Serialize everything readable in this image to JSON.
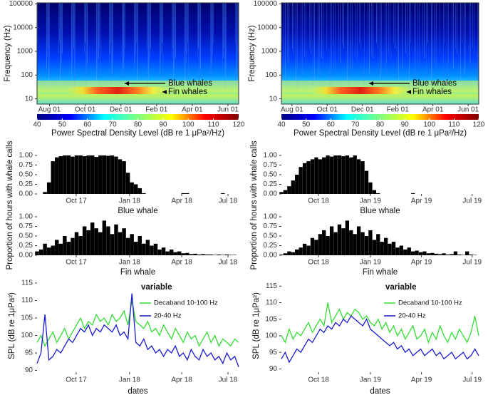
{
  "chart_data": [
    {
      "type": "spectrogram",
      "ylabel": "Frequency (Hz)",
      "log_y": true,
      "ylim": [
        6,
        110000
      ],
      "yticks": [
        10,
        100,
        1000,
        10000,
        100000
      ],
      "xlim": [
        0.3,
        11.6
      ],
      "xticks": [
        {
          "value": 1,
          "label": "Aug 01"
        },
        {
          "value": 3,
          "label": "Oct 01"
        },
        {
          "value": 5,
          "label": "Dec 01"
        },
        {
          "value": 7,
          "label": "Feb 01"
        },
        {
          "value": 9,
          "label": "Apr 01"
        },
        {
          "value": 11,
          "label": "Jun 01"
        }
      ],
      "annotations": [
        "Blue whales",
        "Fin whales"
      ],
      "colorbar": {
        "lim": [
          40,
          120
        ],
        "ticks": [
          40,
          50,
          60,
          70,
          80,
          90,
          100,
          110,
          120
        ],
        "label": "Power Spectral Density Level (dB re 1 μPa²/Hz)",
        "colors": [
          "#00007f",
          "#0000ff",
          "#00ffff",
          "#7fff7f",
          "#ffff00",
          "#ff0000",
          "#7f0000"
        ]
      }
    },
    {
      "type": "bar",
      "ylabel": "Proportion of hours with whale calls",
      "xlabel": "Blue whale",
      "color": "#000000",
      "xlim": [
        0,
        51
      ],
      "ylim": [
        0,
        1
      ],
      "xticks": [
        {
          "value": 9.9,
          "label": "Oct 17"
        },
        {
          "value": 23.4,
          "label": "Jan 18"
        },
        {
          "value": 36.6,
          "label": "Apr 18"
        },
        {
          "value": 48.3,
          "label": "Jul 18"
        }
      ],
      "yticks": [
        {
          "value": 0,
          "label": "0.00"
        },
        {
          "value": 0.25,
          "label": "0.25"
        },
        {
          "value": 0.5,
          "label": "0.50"
        },
        {
          "value": 0.75,
          "label": "0.75"
        },
        {
          "value": 1,
          "label": "1.00"
        }
      ],
      "values": [
        0,
        0,
        0.05,
        0.3,
        0.85,
        0.95,
        0.98,
        1,
        1,
        0.97,
        1,
        1,
        0.98,
        1,
        1,
        0.96,
        1,
        1,
        0.99,
        1,
        0.97,
        0.9,
        0.85,
        0.55,
        0.3,
        0.25,
        0.15,
        0.02,
        0,
        0,
        0,
        0,
        0,
        0,
        0,
        0,
        0,
        0.02,
        0.02,
        0,
        0,
        0,
        0,
        0,
        0,
        0,
        0,
        0.02,
        0,
        0,
        0,
        0
      ]
    },
    {
      "type": "bar",
      "xlabel": "Fin whale",
      "color": "#000000",
      "xlim": [
        0,
        51
      ],
      "ylim": [
        0,
        1
      ],
      "xticks": [
        {
          "value": 9.9,
          "label": "Oct 17"
        },
        {
          "value": 23.4,
          "label": "Jan 18"
        },
        {
          "value": 36.6,
          "label": "Apr 18"
        },
        {
          "value": 48.3,
          "label": "Jul 18"
        }
      ],
      "yticks": [
        {
          "value": 0,
          "label": "0.00"
        },
        {
          "value": 0.25,
          "label": "0.25"
        },
        {
          "value": 0.5,
          "label": "0.50"
        },
        {
          "value": 0.75,
          "label": "0.75"
        },
        {
          "value": 1,
          "label": "1.00"
        }
      ],
      "values": [
        0.1,
        0.15,
        0.3,
        0.2,
        0.25,
        0.4,
        0.3,
        0.5,
        0.35,
        0.45,
        0.6,
        0.5,
        0.75,
        0.65,
        0.85,
        0.7,
        0.6,
        0.9,
        0.75,
        0.55,
        0.8,
        0.6,
        0.7,
        0.45,
        0.55,
        0.35,
        0.5,
        0.3,
        0.4,
        0.25,
        0.3,
        0.15,
        0.2,
        0.1,
        0.15,
        0.08,
        0.1,
        0.05,
        0.06,
        0.03,
        0.04,
        0.02,
        0.03,
        0.02,
        0.02,
        0.01,
        0.02,
        0.01,
        0.02,
        0.01,
        0.01,
        0
      ]
    },
    {
      "type": "line",
      "ylabel": "SPL (dB re 1μPa²)",
      "xlabel": "dates",
      "legend_title": "variable",
      "xlim": [
        0,
        51
      ],
      "ylim": [
        89.5,
        116
      ],
      "xticks": [
        {
          "value": 9.9,
          "label": "Oct 17"
        },
        {
          "value": 23.4,
          "label": "Jan 18"
        },
        {
          "value": 36.6,
          "label": "Apr 18"
        },
        {
          "value": 48.3,
          "label": "Jul 18"
        }
      ],
      "yticks": [
        90,
        95,
        100,
        105,
        110,
        115
      ],
      "series": [
        {
          "name": "Decaband 10-100 Hz",
          "color": "#33dd33",
          "values": [
            98,
            100,
            97,
            99,
            101,
            98,
            100,
            102,
            99,
            101,
            103,
            105,
            102,
            104,
            103,
            106,
            104,
            105,
            103,
            106,
            104,
            105,
            107,
            103,
            110,
            104,
            103,
            102,
            104,
            101,
            102,
            100,
            103,
            101,
            99,
            102,
            100,
            98,
            101,
            99,
            100,
            97,
            99,
            101,
            98,
            100,
            97,
            99,
            98,
            97,
            99,
            98
          ]
        },
        {
          "name": "20-40 Hz",
          "color": "#1a1acc",
          "values": [
            92,
            95,
            106,
            93,
            94,
            96,
            95,
            97,
            99,
            98,
            100,
            102,
            101,
            103,
            100,
            102,
            101,
            103,
            102,
            101,
            103,
            100,
            101,
            99,
            112,
            98,
            97,
            99,
            96,
            97,
            95,
            96,
            94,
            96,
            95,
            97,
            94,
            95,
            93,
            96,
            94,
            93,
            96,
            94,
            95,
            93,
            94,
            92,
            95,
            93,
            94,
            91
          ]
        }
      ]
    },
    {
      "type": "spectrogram",
      "ylabel": "Frequency (Hz)",
      "log_y": true,
      "ylim": [
        6,
        110000
      ],
      "yticks": [
        10,
        100,
        1000,
        10000,
        100000
      ],
      "xlim": [
        0.4,
        11.6
      ],
      "xticks": [
        {
          "value": 1,
          "label": "Aug 01"
        },
        {
          "value": 3,
          "label": "Oct 01"
        },
        {
          "value": 5,
          "label": "Dec 01"
        },
        {
          "value": 7,
          "label": "Feb 01"
        },
        {
          "value": 9,
          "label": "Apr 01"
        },
        {
          "value": 11,
          "label": "Jun 01"
        }
      ],
      "annotations": [
        "Blue whales",
        "Fin whales"
      ],
      "colorbar": {
        "lim": [
          40,
          120
        ],
        "ticks": [
          40,
          50,
          60,
          70,
          80,
          90,
          100,
          110,
          120
        ],
        "label": "Power Spectral Density Level (dB re 1 μPa²/Hz)",
        "colors": [
          "#00007f",
          "#0000ff",
          "#00ffff",
          "#7fff7f",
          "#ffff00",
          "#ff0000",
          "#7f0000"
        ]
      }
    },
    {
      "type": "bar",
      "ylabel": "Proportion of hours with whale calls",
      "xlabel": "Blue whale",
      "color": "#000000",
      "xlim": [
        0,
        51
      ],
      "ylim": [
        0,
        1
      ],
      "xticks": [
        {
          "value": 9.6,
          "label": "Oct 18"
        },
        {
          "value": 23,
          "label": "Jan 19"
        },
        {
          "value": 36.2,
          "label": "Apr 19"
        },
        {
          "value": 49.3,
          "label": "Jul 19"
        }
      ],
      "yticks": [
        {
          "value": 0,
          "label": "0.00"
        },
        {
          "value": 0.25,
          "label": "0.25"
        },
        {
          "value": 0.5,
          "label": "0.50"
        },
        {
          "value": 0.75,
          "label": "0.75"
        },
        {
          "value": 1,
          "label": "1.00"
        }
      ],
      "values": [
        0.05,
        0.1,
        0.2,
        0.35,
        0.5,
        0.7,
        0.8,
        0.85,
        0.9,
        0.95,
        0.9,
        0.95,
        1,
        0.97,
        1,
        1,
        0.98,
        1,
        0.95,
        1,
        0.9,
        0.85,
        0.6,
        0.3,
        0.1,
        0.02,
        0,
        0,
        0,
        0,
        0,
        0,
        0,
        0,
        0.02,
        0,
        0,
        0,
        0,
        0,
        0,
        0,
        0,
        0,
        0,
        0,
        0,
        0,
        0,
        0,
        0,
        0
      ]
    },
    {
      "type": "bar",
      "xlabel": "Fin whale",
      "color": "#000000",
      "xlim": [
        0,
        51
      ],
      "ylim": [
        0,
        1
      ],
      "xticks": [
        {
          "value": 9.6,
          "label": "Oct 18"
        },
        {
          "value": 23,
          "label": "Jan 19"
        },
        {
          "value": 36.2,
          "label": "Apr 19"
        },
        {
          "value": 49.3,
          "label": "Jul 19"
        }
      ],
      "yticks": [
        {
          "value": 0,
          "label": "0.00"
        },
        {
          "value": 0.25,
          "label": "0.25"
        },
        {
          "value": 0.5,
          "label": "0.50"
        },
        {
          "value": 0.75,
          "label": "0.75"
        },
        {
          "value": 1,
          "label": "1.00"
        }
      ],
      "values": [
        0.02,
        0.05,
        0.1,
        0.08,
        0.15,
        0.2,
        0.3,
        0.25,
        0.45,
        0.4,
        0.55,
        0.65,
        0.5,
        0.75,
        0.6,
        0.8,
        0.7,
        0.9,
        0.65,
        0.55,
        0.75,
        0.6,
        0.5,
        0.65,
        0.4,
        0.55,
        0.35,
        0.45,
        0.3,
        0.35,
        0.2,
        0.25,
        0.15,
        0.2,
        0.1,
        0.12,
        0.08,
        0.1,
        0.05,
        0.06,
        0.04,
        0.03,
        0.05,
        0.02,
        0.03,
        0.1,
        0.02,
        0.01,
        0.1,
        0.02,
        0.01,
        0
      ]
    },
    {
      "type": "line",
      "ylabel": "SPL (dB re 1μPa²)",
      "xlabel": "dates",
      "legend_title": "variable",
      "xlim": [
        0,
        51
      ],
      "ylim": [
        89,
        117
      ],
      "xticks": [
        {
          "value": 9.6,
          "label": "Oct 18"
        },
        {
          "value": 23,
          "label": "Jan 19"
        },
        {
          "value": 36.2,
          "label": "Apr 19"
        },
        {
          "value": 49.3,
          "label": "Jul 19"
        }
      ],
      "yticks": [
        90,
        95,
        100,
        105,
        110,
        115
      ],
      "series": [
        {
          "name": "Decaband 10-100 Hz",
          "color": "#33dd33",
          "values": [
            100,
            98,
            102,
            99,
            101,
            100,
            102,
            104,
            101,
            103,
            105,
            103,
            110,
            104,
            106,
            108,
            105,
            107,
            106,
            108,
            107,
            105,
            106,
            104,
            103,
            105,
            102,
            104,
            101,
            103,
            100,
            102,
            99,
            101,
            103,
            99,
            100,
            102,
            98,
            101,
            99,
            103,
            100,
            98,
            101,
            99,
            102,
            100,
            98,
            101,
            106,
            100
          ]
        },
        {
          "name": "20-40 Hz",
          "color": "#1a1acc",
          "values": [
            93,
            95,
            92,
            94,
            96,
            95,
            97,
            99,
            98,
            100,
            102,
            101,
            103,
            102,
            104,
            103,
            105,
            104,
            106,
            105,
            104,
            103,
            105,
            102,
            101,
            100,
            99,
            98,
            97,
            98,
            96,
            97,
            95,
            96,
            94,
            95,
            96,
            94,
            95,
            96,
            94,
            95,
            93,
            94,
            95,
            93,
            94,
            95,
            93,
            94,
            96,
            94
          ]
        }
      ]
    }
  ]
}
